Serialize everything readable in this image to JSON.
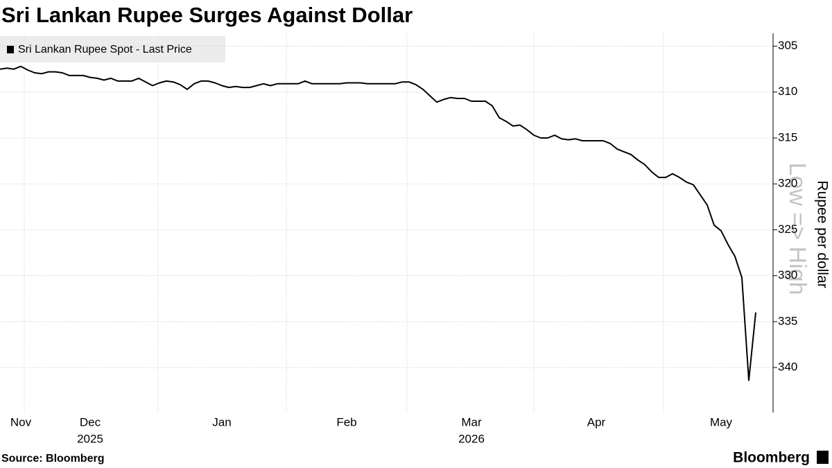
{
  "chart_data": {
    "type": "line",
    "title": "Sri Lankan Rupee Surges Against Dollar",
    "y_label": "Rupee per dollar",
    "annotation": "Low => High",
    "source": "Source: Bloomberg",
    "logo": "Bloomberg",
    "invert_y": true,
    "grid": true,
    "legend_position": "top-left",
    "ylim": [
      303.6,
      344.9
    ],
    "yticks": [
      305,
      310,
      315,
      320,
      325,
      330,
      335,
      340
    ],
    "categories": [
      null,
      null,
      null,
      "Nov",
      null,
      null,
      null,
      null,
      null,
      null,
      null,
      null,
      null,
      "Dec",
      null,
      null,
      null,
      null,
      null,
      null,
      null,
      null,
      null,
      null,
      null,
      null,
      null,
      null,
      null,
      null,
      null,
      null,
      "Jan",
      null,
      null,
      null,
      null,
      null,
      null,
      null,
      null,
      null,
      null,
      null,
      null,
      null,
      null,
      null,
      null,
      null,
      "Feb",
      null,
      null,
      null,
      null,
      null,
      null,
      null,
      null,
      null,
      null,
      null,
      null,
      null,
      null,
      null,
      null,
      null,
      "Mar",
      null,
      null,
      null,
      null,
      null,
      null,
      null,
      null,
      null,
      null,
      null,
      null,
      null,
      null,
      null,
      null,
      null,
      "Apr",
      null,
      null,
      null,
      null,
      null,
      null,
      null,
      null,
      null,
      null,
      null,
      null,
      null,
      null,
      null,
      null,
      null,
      "May",
      null,
      null,
      null,
      null,
      null
    ],
    "years": [
      null,
      null,
      null,
      null,
      null,
      null,
      null,
      null,
      null,
      null,
      null,
      null,
      null,
      "2025",
      null,
      null,
      null,
      null,
      null,
      null,
      null,
      null,
      null,
      null,
      null,
      null,
      null,
      null,
      null,
      null,
      null,
      null,
      null,
      null,
      null,
      null,
      null,
      null,
      null,
      null,
      null,
      null,
      null,
      null,
      null,
      null,
      null,
      null,
      null,
      null,
      null,
      null,
      null,
      null,
      null,
      null,
      null,
      null,
      null,
      null,
      null,
      null,
      null,
      null,
      null,
      null,
      null,
      null,
      "2026",
      null,
      null,
      null,
      null,
      null,
      null,
      null,
      null,
      null,
      null,
      null,
      null,
      null,
      null,
      null,
      null,
      null,
      null,
      null,
      null,
      null,
      null,
      null,
      null,
      null,
      null,
      null,
      null,
      null,
      null,
      null,
      null,
      null,
      null,
      null,
      null,
      null,
      null,
      null,
      null,
      null
    ],
    "series": [
      {
        "name": "Sri Lankan Rupee Spot - Last Price",
        "color": "#000000",
        "values": [
          307.5,
          307.4,
          307.5,
          307.2,
          307.6,
          307.9,
          308.0,
          307.8,
          307.8,
          307.9,
          308.2,
          308.2,
          308.2,
          308.4,
          308.5,
          308.7,
          308.5,
          308.8,
          308.8,
          308.8,
          308.5,
          308.9,
          309.3,
          309.0,
          308.8,
          308.9,
          309.2,
          309.7,
          309.1,
          308.8,
          308.8,
          309.0,
          309.3,
          309.5,
          309.4,
          309.5,
          309.5,
          309.3,
          309.1,
          309.3,
          309.1,
          309.1,
          309.1,
          309.1,
          308.8,
          309.1,
          309.1,
          309.1,
          309.1,
          309.1,
          309.0,
          309.0,
          309.0,
          309.1,
          309.1,
          309.1,
          309.1,
          309.1,
          308.9,
          308.9,
          309.2,
          309.7,
          310.4,
          311.1,
          310.8,
          310.6,
          310.7,
          310.7,
          311.0,
          311.0,
          311.0,
          311.5,
          312.8,
          313.2,
          313.7,
          313.6,
          314.1,
          314.7,
          315.0,
          315.0,
          314.7,
          315.1,
          315.2,
          315.1,
          315.3,
          315.3,
          315.3,
          315.3,
          315.6,
          316.2,
          316.5,
          316.8,
          317.4,
          317.9,
          318.7,
          319.3,
          319.3,
          318.9,
          319.3,
          319.8,
          320.1,
          321.2,
          322.3,
          324.5,
          325.1,
          326.6,
          327.9,
          330.2,
          341.4,
          334.0
        ]
      }
    ]
  }
}
